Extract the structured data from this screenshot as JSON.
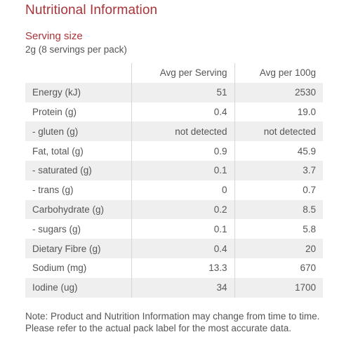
{
  "title": "Nutritional Information",
  "serving": {
    "label": "Serving size",
    "value": "2g (8 servings per pack)"
  },
  "table": {
    "headers": [
      "",
      "Avg per Serving",
      "Avg per 100g"
    ],
    "rows": [
      {
        "name": "Energy (kJ)",
        "per_serving": "51",
        "per_100g": "2530"
      },
      {
        "name": "Protein (g)",
        "per_serving": "0.4",
        "per_100g": "19.0"
      },
      {
        "name": "- gluten (g)",
        "per_serving": "not detected",
        "per_100g": "not detected"
      },
      {
        "name": "Fat, total (g)",
        "per_serving": "0.9",
        "per_100g": "45.9"
      },
      {
        "name": "- saturated (g)",
        "per_serving": "0.1",
        "per_100g": "3.7"
      },
      {
        "name": "- trans (g)",
        "per_serving": "0",
        "per_100g": "0.7"
      },
      {
        "name": "Carbohydrate (g)",
        "per_serving": "0.2",
        "per_100g": "8.5"
      },
      {
        "name": "- sugars (g)",
        "per_serving": "0.1",
        "per_100g": "5.8"
      },
      {
        "name": "Dietary Fibre (g)",
        "per_serving": "0.4",
        "per_100g": "20"
      },
      {
        "name": "Sodium (mg)",
        "per_serving": "13.3",
        "per_100g": "670"
      },
      {
        "name": "Iodine (ug)",
        "per_serving": "34",
        "per_100g": "1700"
      }
    ]
  },
  "note": "Note: Product and Nutrition Information may change from time to time. Please refer to the actual pack label for the most accurate data.",
  "colors": {
    "accent": "#a8343a",
    "row_shade": "#efefef",
    "text": "#555555"
  }
}
